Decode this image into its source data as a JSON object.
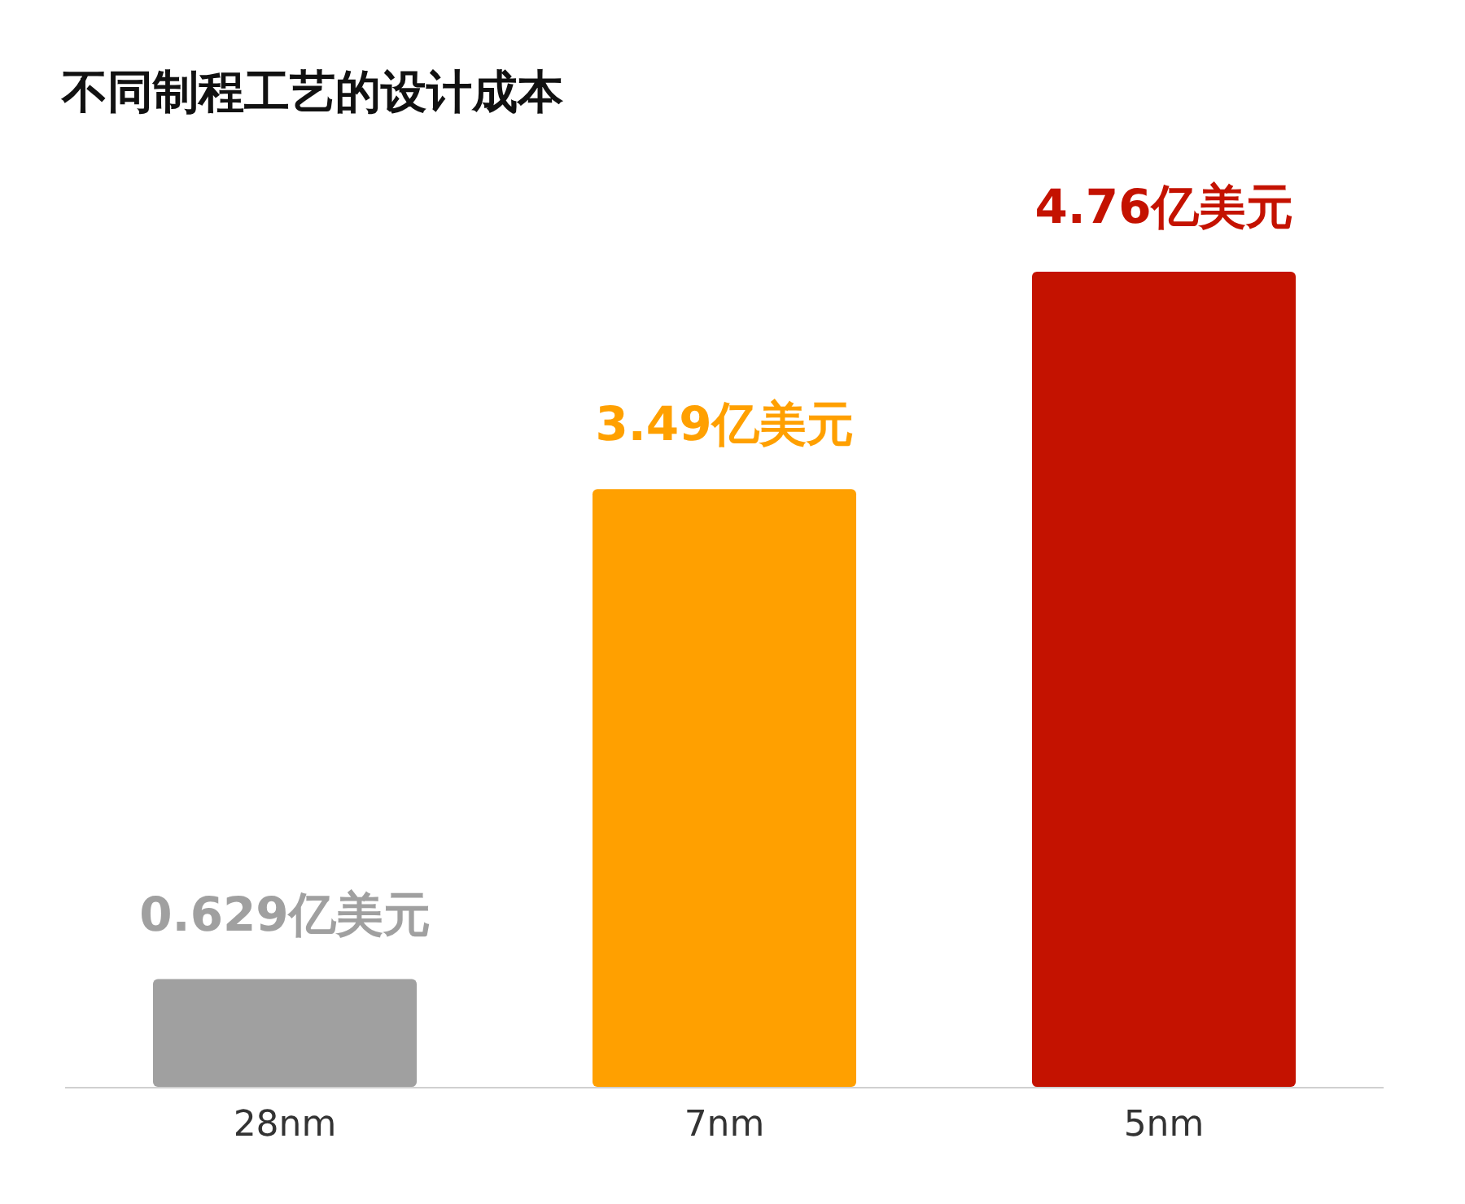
{
  "chart_data": {
    "type": "bar",
    "title": "不同制程工艺的设计成本",
    "categories": [
      "28nm",
      "7nm",
      "5nm"
    ],
    "values": [
      0.629,
      3.49,
      4.76
    ],
    "colors": [
      "#a0a0a0",
      "#ffa000",
      "#c41200"
    ],
    "value_labels": [
      "0.629亿美元",
      "3.49亿美元",
      "4.76亿美元"
    ]
  }
}
